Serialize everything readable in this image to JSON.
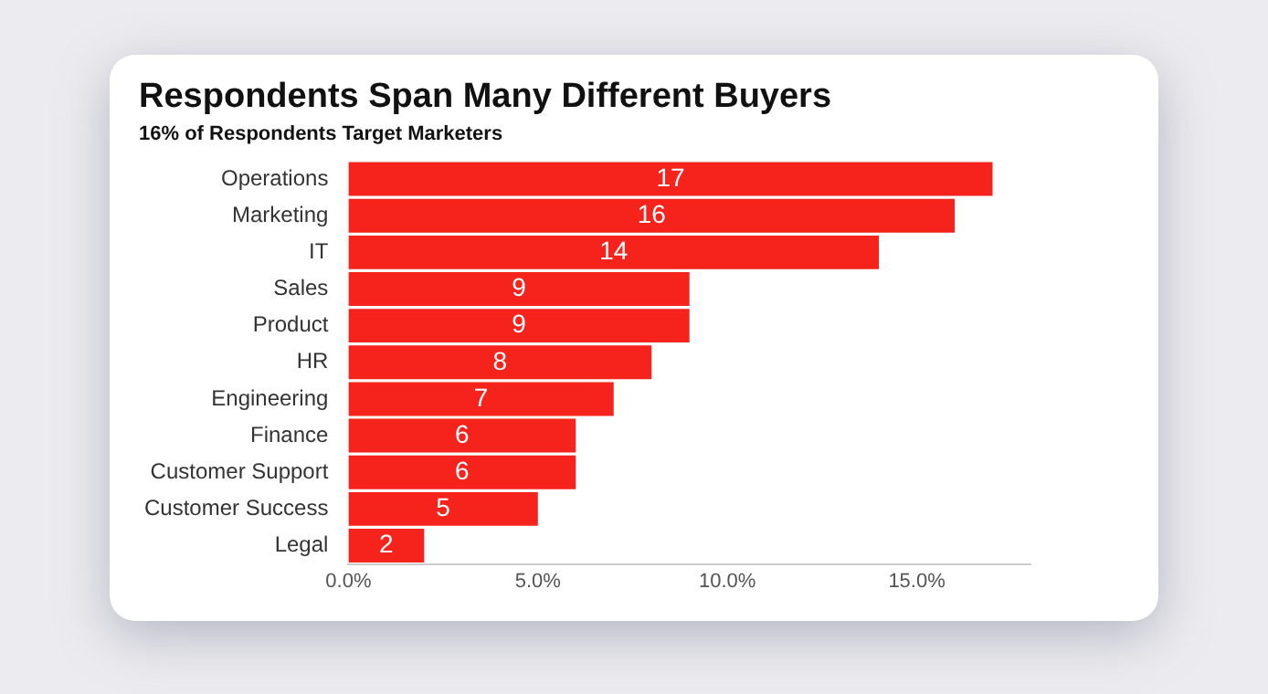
{
  "chart_data": {
    "type": "bar",
    "orientation": "horizontal",
    "title": "Respondents Span Many Different Buyers",
    "subtitle": "16% of Respondents Target Marketers",
    "categories": [
      "Operations",
      "Marketing",
      "IT",
      "Sales",
      "Product",
      "HR",
      "Engineering",
      "Finance",
      "Customer Support",
      "Customer Success",
      "Legal"
    ],
    "values": [
      17,
      16,
      14,
      9,
      9,
      8,
      7,
      6,
      6,
      5,
      2
    ],
    "color": "#f5231b",
    "xlim": [
      0,
      18
    ],
    "xticks": [
      {
        "value": 0,
        "label": "0.0%"
      },
      {
        "value": 5,
        "label": "5.0%"
      },
      {
        "value": 10,
        "label": "10.0%"
      },
      {
        "value": 15,
        "label": "15.0%"
      }
    ],
    "data_labels": true,
    "grid": false,
    "legend": false
  }
}
